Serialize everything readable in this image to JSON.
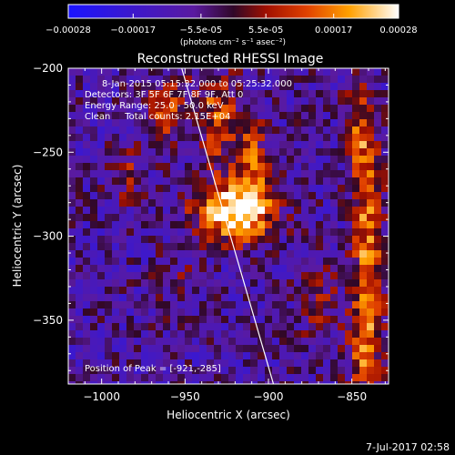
{
  "colorbar": {
    "ticks": [
      "-0.00028",
      "-0.00017",
      "-5.5e-05",
      "5.5e-05",
      "0.00017",
      "0.00028"
    ],
    "min": -0.00028,
    "max": 0.00028,
    "unit_label": "(photons cm⁻² s⁻¹ asec⁻²)"
  },
  "chart_data": {
    "type": "heatmap",
    "title": "Reconstructed RHESSI Image",
    "xlabel": "Heliocentric X (arcsec)",
    "ylabel": "Heliocentric Y (arcsec)",
    "xlim": [
      -1020,
      -828
    ],
    "ylim": [
      -388,
      -200
    ],
    "xticks": [
      {
        "value": -1000,
        "label": "−1000"
      },
      {
        "value": -950,
        "label": "−950"
      },
      {
        "value": -900,
        "label": "−900"
      },
      {
        "value": -850,
        "label": "−850"
      }
    ],
    "yticks": [
      {
        "value": -200,
        "label": "−200"
      },
      {
        "value": -250,
        "label": "−250"
      },
      {
        "value": -300,
        "label": "−300"
      },
      {
        "value": -350,
        "label": "−350"
      }
    ],
    "annotations": [
      "8-Jan-2015 05:15:32.000 to 05:25:32.000",
      "Detectors: 3F 5F 6F 7F 8F 9F, Att 0",
      "Energy Range: 25.0 - 50.0 keV",
      "Clean     Total counts: 2.15E+04"
    ],
    "peak_label": "Position of Peak = [-921,-285]",
    "peak": {
      "x": -921,
      "y": -285
    },
    "limb_line": [
      {
        "x": -952,
        "y": -200
      },
      {
        "x": -897,
        "y": -388
      }
    ],
    "sources": [
      {
        "x": -921,
        "y": -285,
        "sx": 16,
        "sy": 12,
        "amp": 1.0
      },
      {
        "x": -930,
        "y": -230,
        "sx": 9,
        "sy": 18,
        "amp": 0.55
      },
      {
        "x": -910,
        "y": -260,
        "sx": 8,
        "sy": 20,
        "amp": 0.5
      },
      {
        "x": -960,
        "y": -225,
        "sx": 10,
        "sy": 14,
        "amp": 0.45
      },
      {
        "x": -985,
        "y": -265,
        "sx": 8,
        "sy": 12,
        "amp": 0.3
      },
      {
        "x": -845,
        "y": -240,
        "sx": 6,
        "sy": 25,
        "amp": 0.55
      },
      {
        "x": -840,
        "y": -300,
        "sx": 6,
        "sy": 30,
        "amp": 0.6
      },
      {
        "x": -842,
        "y": -360,
        "sx": 7,
        "sy": 25,
        "amp": 0.65
      },
      {
        "x": -870,
        "y": -340,
        "sx": 8,
        "sy": 22,
        "amp": 0.25
      },
      {
        "x": -955,
        "y": -330,
        "sx": 10,
        "sy": 15,
        "amp": 0.15
      }
    ],
    "grid": false
  },
  "footer": {
    "timestamp": "7-Jul-2017 02:58"
  }
}
